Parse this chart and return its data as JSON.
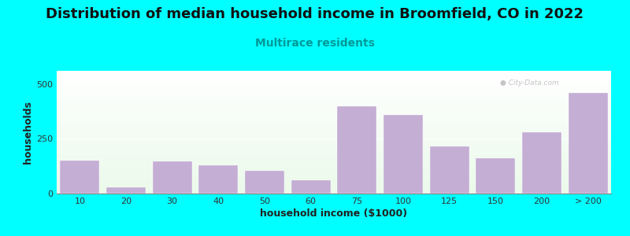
{
  "title": "Distribution of median household income in Broomfield, CO in 2022",
  "subtitle": "Multirace residents",
  "xlabel": "household income ($1000)",
  "ylabel": "households",
  "background_color": "#00FFFF",
  "bar_color": "#C4AED4",
  "categories": [
    "10",
    "20",
    "30",
    "40",
    "50",
    "60",
    "75",
    "100",
    "125",
    "150",
    "200",
    "> 200"
  ],
  "values": [
    150,
    28,
    148,
    128,
    105,
    62,
    400,
    360,
    215,
    162,
    280,
    460
  ],
  "ylim": [
    0,
    560
  ],
  "yticks": [
    0,
    250,
    500
  ],
  "title_fontsize": 13,
  "subtitle_fontsize": 10,
  "axis_label_fontsize": 9,
  "tick_fontsize": 8,
  "watermark_text": "City-Data.com"
}
